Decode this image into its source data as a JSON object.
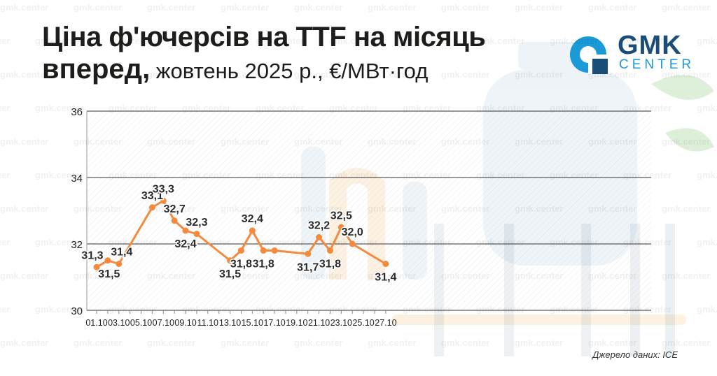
{
  "header": {
    "title_line1": "Ціна ф'ючерсів на TTF на місяць",
    "title_line2_bold": "вперед,",
    "title_line2_rest": " жовтень 2025 р., €/МВт·год"
  },
  "logo": {
    "name": "GMK",
    "sub": "CENTER",
    "icon": "gmk-logo-icon"
  },
  "watermark": "gmk.center",
  "source": "Джерело даних: ICE",
  "colors": {
    "line": "#f58a3c",
    "accent": "#1a9ad6",
    "brand": "#1a4e78",
    "text": "#1d1d1b"
  },
  "chart_data": {
    "type": "line",
    "title": "Ціна ф'ючерсів на TTF на місяць вперед, жовтень 2025 р., €/МВт·год",
    "xlabel": "",
    "ylabel": "",
    "ylim": [
      30,
      36
    ],
    "yticks": [
      30,
      32,
      34,
      36
    ],
    "xticks": [
      "01.10",
      "03.10",
      "05.10",
      "07.10",
      "09.10",
      "11.10",
      "13.10",
      "15.10",
      "17.10",
      "19.10",
      "21.10",
      "23.10",
      "25.10",
      "27.10"
    ],
    "grid": true,
    "series": [
      {
        "x": [
          "01.10",
          "02.10",
          "03.10",
          "06.10",
          "07.10",
          "08.10",
          "09.10",
          "10.10",
          "13.10",
          "14.10",
          "15.10",
          "16.10",
          "17.10",
          "20.10",
          "21.10",
          "22.10",
          "23.10",
          "24.10",
          "27.10"
        ],
        "values": [
          31.3,
          31.5,
          31.4,
          33.1,
          33.3,
          32.7,
          32.4,
          32.3,
          31.5,
          31.8,
          32.4,
          31.8,
          31.8,
          31.7,
          32.2,
          31.8,
          32.5,
          32.0,
          31.4
        ],
        "labels": [
          "31,3",
          "31,5",
          "31,4",
          "33,1",
          "33,3",
          "32,7",
          "32,4",
          "32,3",
          "31,5",
          "31,8",
          "32,4",
          "31,8",
          "",
          "31,7",
          "32,2",
          "31,8",
          "32,5",
          "32,0",
          "31,4"
        ]
      }
    ]
  }
}
